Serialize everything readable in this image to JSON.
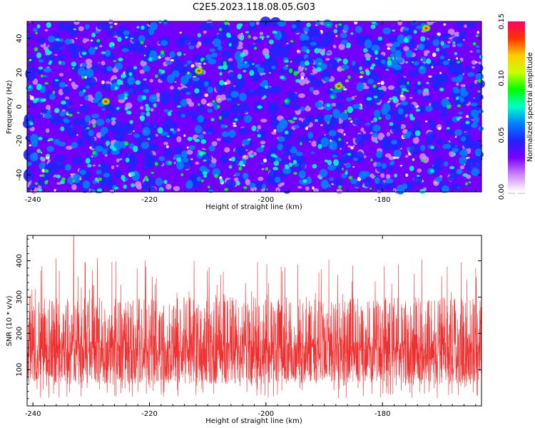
{
  "title": "C2E5.2023.118.08.05.G03",
  "colors": {
    "snr_line": "#f03030",
    "colormap": [
      "#ffffff",
      "#cc88ff",
      "#7a00ff",
      "#2222ff",
      "#0080ff",
      "#00ffc8",
      "#00ff00",
      "#c8ff00",
      "#ffcc00",
      "#ff3300",
      "#ff0066"
    ]
  },
  "chart_data": [
    {
      "type": "heatmap",
      "title": "C2E5.2023.118.08.05.G03",
      "xlabel": "Height of straight line (km)",
      "ylabel": "Frequency (Hz)",
      "xlim": [
        -241,
        -163
      ],
      "ylim": [
        -50,
        50
      ],
      "xticks": [
        "-240",
        "-220",
        "-200",
        "-180"
      ],
      "yticks": [
        "40",
        "20",
        "0",
        "-20",
        "-40"
      ],
      "colorbar": {
        "label": "Normalized spectral amplitude",
        "range": [
          0,
          0.15
        ],
        "ticks": [
          "0.00",
          "0.05",
          "0.10",
          "0.15"
        ]
      },
      "hotspots": [
        {
          "x": -211.5,
          "y": 21,
          "value": 0.15
        },
        {
          "x": -172.5,
          "y": 46,
          "value": 0.15
        },
        {
          "x": -227.5,
          "y": 3,
          "value": 0.13
        },
        {
          "x": -187.5,
          "y": 12,
          "value": 0.13
        }
      ]
    },
    {
      "type": "line",
      "xlabel": "Height of straight line (km)",
      "ylabel": "SNR (10 * v/v)",
      "xlim": [
        -241,
        -163
      ],
      "ylim": [
        0,
        470
      ],
      "xticks": [
        "-240",
        "-220",
        "-200",
        "-180"
      ],
      "yticks": [
        "400",
        "300",
        "200",
        "100"
      ],
      "grid": false,
      "series": [
        {
          "mean": 150,
          "typical_max": 300,
          "peak": 470,
          "peak_x": -233
        }
      ]
    }
  ]
}
